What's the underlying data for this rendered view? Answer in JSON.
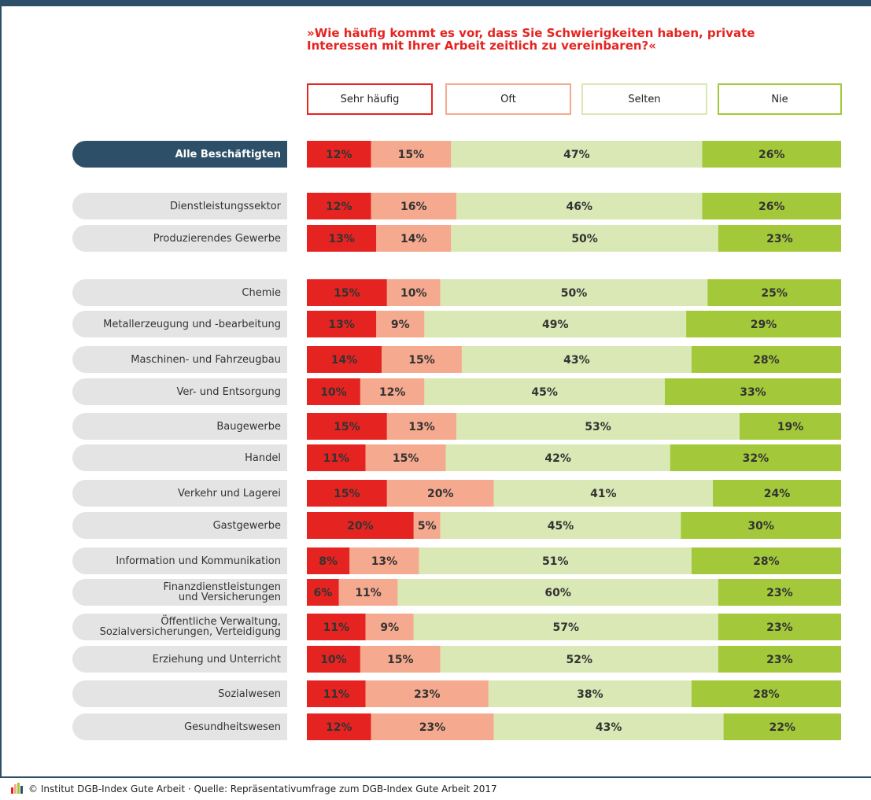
{
  "chart_data": {
    "type": "stacked-bar",
    "title": "»Wie häufig kommt es vor, dass Sie Schwierigkeiten haben, private\nInteressen mit Ihrer Arbeit zeitlich zu vereinbaren?«",
    "categories": [
      "Alle Beschäftigten",
      "Dienstleistungssektor",
      "Produzierendes Gewerbe",
      "Chemie",
      "Metallerzeugung und -bearbeitung",
      "Maschinen- und Fahrzeugbau",
      "Ver- und Entsorgung",
      "Baugewerbe",
      "Handel",
      "Verkehr und Lagerei",
      "Gastgewerbe",
      "Information und Kommunikation",
      "Finanzdienstleistungen\nund Versicherungen",
      "Öffentliche Verwaltung,\nSozialversicherungen, Verteidigung",
      "Erziehung und Unterricht",
      "Sozialwesen",
      "Gesundheitswesen"
    ],
    "xlim": [
      0,
      100
    ],
    "series": [
      {
        "name": "Sehr häufig",
        "color": "#e52421",
        "values": [
          12,
          12,
          13,
          15,
          13,
          14,
          10,
          15,
          11,
          15,
          20,
          8,
          6,
          11,
          10,
          11,
          12
        ],
        "value_labels": [
          "12%",
          "12%",
          "13%",
          "15%",
          "13%",
          "14%",
          "10%",
          "15%",
          "11%",
          "15%",
          "20%",
          "8%",
          "6%",
          "11%",
          "10%",
          "11%",
          "12%"
        ]
      },
      {
        "name": "Oft",
        "color": "#f5a98e",
        "values": [
          15,
          16,
          14,
          10,
          9,
          15,
          12,
          13,
          15,
          20,
          5,
          13,
          11,
          9,
          15,
          23,
          23
        ],
        "value_labels": [
          "15%",
          "16%",
          "14%",
          "10%",
          "9%",
          "15%",
          "12%",
          "13%",
          "15%",
          "20%",
          "5%",
          "13%",
          "11%",
          "9%",
          "15%",
          "23%",
          "23%"
        ]
      },
      {
        "name": "Selten",
        "color": "#d9e8b5",
        "values": [
          47,
          46,
          50,
          50,
          49,
          43,
          45,
          53,
          42,
          41,
          45,
          51,
          60,
          57,
          52,
          38,
          43
        ],
        "value_labels": [
          "47%",
          "46%",
          "50%",
          "50%",
          "49%",
          "43%",
          "45%",
          "53%",
          "42%",
          "41%",
          "45%",
          "51%",
          "60%",
          "57%",
          "52%",
          "38%",
          "43%"
        ]
      },
      {
        "name": "Nie",
        "color": "#a3c93a",
        "values": [
          26,
          26,
          23,
          25,
          29,
          28,
          33,
          19,
          32,
          24,
          30,
          28,
          23,
          23,
          23,
          28,
          22
        ],
        "value_labels": [
          "26%",
          "26%",
          "23%",
          "25%",
          "29%",
          "28%",
          "33%",
          "19%",
          "32%",
          "24%",
          "30%",
          "28%",
          "23%",
          "23%",
          "23%",
          "28%",
          "22%"
        ]
      }
    ],
    "source": "© Institut DGB-Index Gute Arbeit · Quelle: Repräsentativumfrage zum DGB-Index Gute Arbeit 2017"
  }
}
